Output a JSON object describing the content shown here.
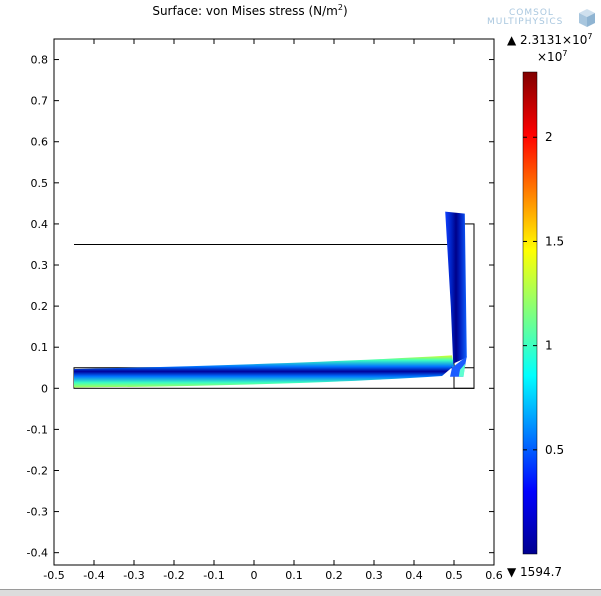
{
  "chart_data": {
    "type": "surface",
    "title_prefix": "Surface: von Mises stress (N/m",
    "title_exp": "2",
    "title_suffix": ")",
    "quantity": "von Mises stress",
    "unit": "N/m^2",
    "xlim": [
      -0.5,
      0.6
    ],
    "ylim": [
      -0.43,
      0.85
    ],
    "x_ticks": [
      "-0.5",
      "-0.4",
      "-0.3",
      "-0.2",
      "-0.1",
      "0",
      "0.1",
      "0.2",
      "0.3",
      "0.4",
      "0.5",
      "0.6"
    ],
    "x_tick_values": [
      -0.5,
      -0.4,
      -0.3,
      -0.2,
      -0.1,
      0,
      0.1,
      0.2,
      0.3,
      0.4,
      0.5,
      0.6
    ],
    "y_ticks": [
      "0.8",
      "0.7",
      "0.6",
      "0.5",
      "0.4",
      "0.3",
      "0.2",
      "0.1",
      "0",
      "-0.1",
      "-0.2",
      "-0.3",
      "-0.4"
    ],
    "y_tick_values": [
      0.8,
      0.7,
      0.6,
      0.5,
      0.4,
      0.3,
      0.2,
      0.1,
      0,
      -0.1,
      -0.2,
      -0.3,
      -0.4
    ],
    "colorbar": {
      "max_label_mantissa": "2.3131×10",
      "max_label_exp": "7",
      "scale_prefix": "×10",
      "scale_exp": "7",
      "min_label": "1594.7",
      "min": 1594.7,
      "max": 23131000,
      "ticks": [
        "2",
        "1.5",
        "1",
        "0.5"
      ],
      "tick_values": [
        2,
        1.5,
        1,
        0.5
      ],
      "colormap": "rainbow"
    },
    "undeformed_outline": {
      "horizontal_arm": {
        "x": [
          -0.45,
          0.55
        ],
        "y": [
          0,
          0.05
        ]
      },
      "vertical_arm": {
        "x": [
          0.5,
          0.55
        ],
        "y": [
          0,
          0.4
        ]
      },
      "reference_line_y": 0.35,
      "reference_line_x": [
        -0.45,
        0.5
      ]
    },
    "deformed_centerline": [
      [
        -0.45,
        0.022
      ],
      [
        -0.3,
        0.024
      ],
      [
        -0.1,
        0.027
      ],
      [
        0.1,
        0.032
      ],
      [
        0.3,
        0.041
      ],
      [
        0.45,
        0.05
      ],
      [
        0.49,
        0.056
      ],
      [
        0.51,
        0.09
      ],
      [
        0.5,
        0.2
      ],
      [
        0.49,
        0.33
      ],
      [
        0.48,
        0.42
      ]
    ]
  },
  "logo": {
    "line1": "COMSOL",
    "line2": "MULTIPHYSICS"
  }
}
